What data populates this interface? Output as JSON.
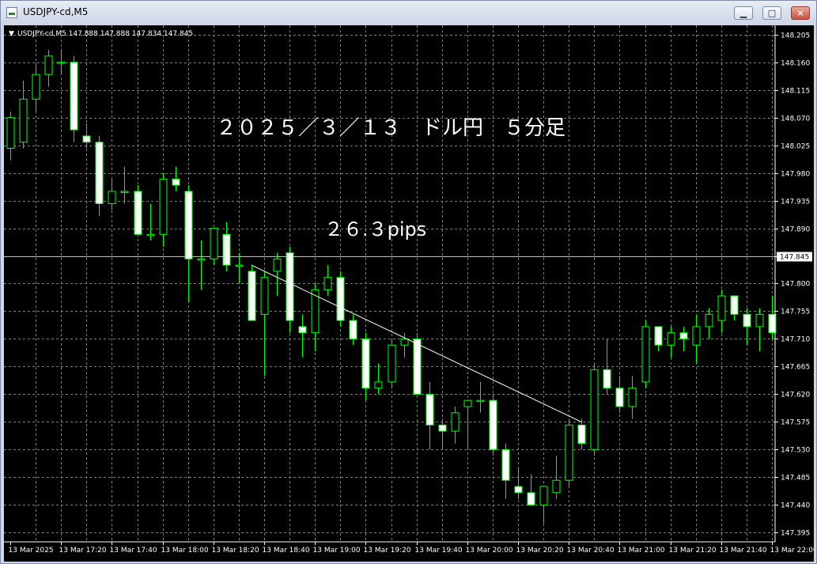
{
  "window": {
    "title": "USDJPY-cd,M5",
    "minimize_glyph": "▁",
    "maximize_glyph": "□",
    "close_glyph": "×"
  },
  "chart_header": {
    "label": "USDJPY-cd,M5  147.888 147.888 147.834 147.845",
    "dropdown_glyph": "▼"
  },
  "annotations": {
    "title": "２０２５／３／１３　ドル円　５分足",
    "pips": "２６.３pips"
  },
  "colors": {
    "background": "#000000",
    "grid": "#7f7f7f",
    "candle_up_body": "#000000",
    "candle_down_body": "#ffffff",
    "candle_wick": "#00ff00",
    "bid_line": "#c0c0c0",
    "trend_line": "#ffffff",
    "axis_text": "#ffffff"
  },
  "chart_data": {
    "type": "candlestick",
    "symbol": "USDJPY-cd",
    "timeframe": "M5",
    "ylim": [
      147.38,
      148.22
    ],
    "y_ticks": [
      "148.205",
      "148.160",
      "148.115",
      "148.070",
      "148.025",
      "147.980",
      "147.935",
      "147.890",
      "147.845",
      "147.800",
      "147.755",
      "147.710",
      "147.665",
      "147.620",
      "147.575",
      "147.530",
      "147.485",
      "147.440",
      "147.395"
    ],
    "current_price": "147.845",
    "x_labels": [
      "13 Mar 2025",
      "13 Mar 17:20",
      "13 Mar 17:40",
      "13 Mar 18:00",
      "13 Mar 18:20",
      "13 Mar 18:40",
      "13 Mar 19:00",
      "13 Mar 19:20",
      "13 Mar 19:40",
      "13 Mar 20:00",
      "13 Mar 20:20",
      "13 Mar 20:40",
      "13 Mar 21:00",
      "13 Mar 21:20",
      "13 Mar 21:40",
      "13 Mar 22:00"
    ],
    "candles": [
      {
        "o": 148.02,
        "h": 148.08,
        "l": 148.0,
        "c": 148.07
      },
      {
        "o": 148.03,
        "h": 148.13,
        "l": 148.02,
        "c": 148.1
      },
      {
        "o": 148.1,
        "h": 148.16,
        "l": 148.08,
        "c": 148.14
      },
      {
        "o": 148.14,
        "h": 148.18,
        "l": 148.12,
        "c": 148.17
      },
      {
        "o": 148.16,
        "h": 148.18,
        "l": 148.14,
        "c": 148.16
      },
      {
        "o": 148.16,
        "h": 148.17,
        "l": 148.03,
        "c": 148.05
      },
      {
        "o": 148.04,
        "h": 148.06,
        "l": 148.02,
        "c": 148.03
      },
      {
        "o": 148.03,
        "h": 148.04,
        "l": 147.91,
        "c": 147.93
      },
      {
        "o": 147.93,
        "h": 147.97,
        "l": 147.92,
        "c": 147.95
      },
      {
        "o": 147.95,
        "h": 147.99,
        "l": 147.93,
        "c": 147.95
      },
      {
        "o": 147.95,
        "h": 147.96,
        "l": 147.88,
        "c": 147.88
      },
      {
        "o": 147.88,
        "h": 147.93,
        "l": 147.87,
        "c": 147.88
      },
      {
        "o": 147.88,
        "h": 147.98,
        "l": 147.86,
        "c": 147.97
      },
      {
        "o": 147.97,
        "h": 147.99,
        "l": 147.95,
        "c": 147.96
      },
      {
        "o": 147.95,
        "h": 147.96,
        "l": 147.77,
        "c": 147.84
      },
      {
        "o": 147.84,
        "h": 147.87,
        "l": 147.79,
        "c": 147.84
      },
      {
        "o": 147.84,
        "h": 147.89,
        "l": 147.83,
        "c": 147.89
      },
      {
        "o": 147.88,
        "h": 147.9,
        "l": 147.82,
        "c": 147.83
      },
      {
        "o": 147.83,
        "h": 147.85,
        "l": 147.8,
        "c": 147.83
      },
      {
        "o": 147.82,
        "h": 147.83,
        "l": 147.74,
        "c": 147.74
      },
      {
        "o": 147.75,
        "h": 147.82,
        "l": 147.65,
        "c": 147.81
      },
      {
        "o": 147.82,
        "h": 147.85,
        "l": 147.78,
        "c": 147.84
      },
      {
        "o": 147.85,
        "h": 147.86,
        "l": 147.72,
        "c": 147.74
      },
      {
        "o": 147.73,
        "h": 147.75,
        "l": 147.68,
        "c": 147.72
      },
      {
        "o": 147.72,
        "h": 147.8,
        "l": 147.69,
        "c": 147.79
      },
      {
        "o": 147.79,
        "h": 147.83,
        "l": 147.78,
        "c": 147.81
      },
      {
        "o": 147.81,
        "h": 147.82,
        "l": 147.73,
        "c": 147.74
      },
      {
        "o": 147.74,
        "h": 147.75,
        "l": 147.7,
        "c": 147.71
      },
      {
        "o": 147.71,
        "h": 147.72,
        "l": 147.61,
        "c": 147.63
      },
      {
        "o": 147.63,
        "h": 147.67,
        "l": 147.62,
        "c": 147.64
      },
      {
        "o": 147.64,
        "h": 147.71,
        "l": 147.63,
        "c": 147.7
      },
      {
        "o": 147.7,
        "h": 147.72,
        "l": 147.68,
        "c": 147.71
      },
      {
        "o": 147.71,
        "h": 147.72,
        "l": 147.62,
        "c": 147.62
      },
      {
        "o": 147.62,
        "h": 147.64,
        "l": 147.53,
        "c": 147.57
      },
      {
        "o": 147.57,
        "h": 147.58,
        "l": 147.53,
        "c": 147.56
      },
      {
        "o": 147.56,
        "h": 147.6,
        "l": 147.54,
        "c": 147.59
      },
      {
        "o": 147.6,
        "h": 147.61,
        "l": 147.53,
        "c": 147.61
      },
      {
        "o": 147.61,
        "h": 147.64,
        "l": 147.59,
        "c": 147.61
      },
      {
        "o": 147.61,
        "h": 147.62,
        "l": 147.52,
        "c": 147.53
      },
      {
        "o": 147.53,
        "h": 147.54,
        "l": 147.45,
        "c": 147.48
      },
      {
        "o": 147.47,
        "h": 147.5,
        "l": 147.45,
        "c": 147.46
      },
      {
        "o": 147.46,
        "h": 147.49,
        "l": 147.44,
        "c": 147.44
      },
      {
        "o": 147.44,
        "h": 147.47,
        "l": 147.41,
        "c": 147.47
      },
      {
        "o": 147.46,
        "h": 147.52,
        "l": 147.45,
        "c": 147.48
      },
      {
        "o": 147.48,
        "h": 147.58,
        "l": 147.47,
        "c": 147.57
      },
      {
        "o": 147.57,
        "h": 147.58,
        "l": 147.53,
        "c": 147.54
      },
      {
        "o": 147.53,
        "h": 147.67,
        "l": 147.52,
        "c": 147.66
      },
      {
        "o": 147.66,
        "h": 147.71,
        "l": 147.62,
        "c": 147.63
      },
      {
        "o": 147.63,
        "h": 147.65,
        "l": 147.59,
        "c": 147.6
      },
      {
        "o": 147.6,
        "h": 147.65,
        "l": 147.58,
        "c": 147.63
      },
      {
        "o": 147.64,
        "h": 147.74,
        "l": 147.63,
        "c": 147.73
      },
      {
        "o": 147.73,
        "h": 147.73,
        "l": 147.69,
        "c": 147.7
      },
      {
        "o": 147.7,
        "h": 147.73,
        "l": 147.68,
        "c": 147.72
      },
      {
        "o": 147.72,
        "h": 147.73,
        "l": 147.69,
        "c": 147.71
      },
      {
        "o": 147.7,
        "h": 147.75,
        "l": 147.67,
        "c": 147.73
      },
      {
        "o": 147.73,
        "h": 147.76,
        "l": 147.71,
        "c": 147.75
      },
      {
        "o": 147.74,
        "h": 147.79,
        "l": 147.72,
        "c": 147.78
      },
      {
        "o": 147.78,
        "h": 147.78,
        "l": 147.74,
        "c": 147.75
      },
      {
        "o": 147.75,
        "h": 147.76,
        "l": 147.7,
        "c": 147.73
      },
      {
        "o": 147.73,
        "h": 147.76,
        "l": 147.69,
        "c": 147.75
      },
      {
        "o": 147.75,
        "h": 147.78,
        "l": 147.71,
        "c": 147.72
      }
    ],
    "trendline": {
      "from": {
        "candle": 19,
        "price": 147.83
      },
      "to": {
        "candle": 45,
        "price": 147.575
      }
    }
  }
}
